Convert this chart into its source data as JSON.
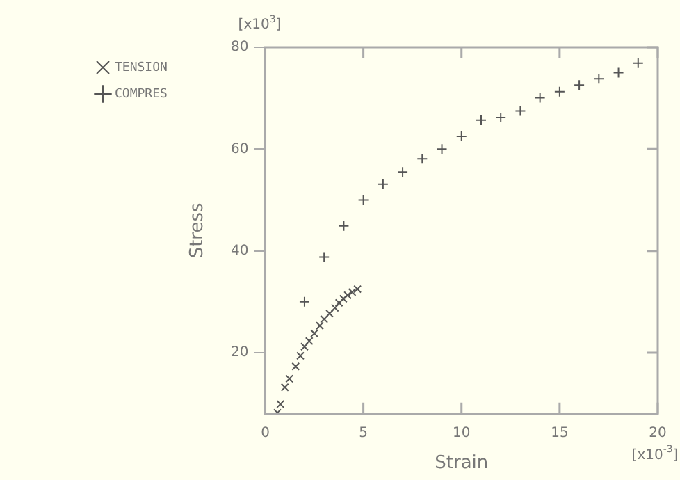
{
  "chart_data": {
    "type": "scatter",
    "xlabel": "Strain",
    "ylabel": "Stress",
    "annotations": [
      "[x10$^{3}$]",
      "[x10$^{-3}$]"
    ],
    "xlim": [
      0,
      20
    ],
    "xticks": [
      0,
      5,
      10,
      15,
      20
    ],
    "ylim": [
      8,
      80
    ],
    "yticks": [
      20,
      40,
      60,
      80
    ],
    "grid": false,
    "legend": "top left",
    "series": [
      {
        "name": "TENSION",
        "color": "#555555",
        "marker": "cross_x",
        "x": [
          0.62,
          0.77,
          1.0,
          1.23,
          1.55,
          1.79,
          2.0,
          2.24,
          2.5,
          2.78,
          3.0,
          3.28,
          3.55,
          3.76,
          3.98,
          4.2,
          4.43,
          4.7
        ],
        "values": [
          8.2,
          9.9,
          13.2,
          14.9,
          17.3,
          19.4,
          21.2,
          22.3,
          23.8,
          25.3,
          26.6,
          27.7,
          28.8,
          29.8,
          30.6,
          31.3,
          31.9,
          32.5
        ]
      },
      {
        "name": "COMPRES",
        "color": "#555555",
        "marker": "cross",
        "x": [
          2,
          3,
          4,
          5,
          6,
          7,
          8,
          9,
          10,
          11,
          12,
          13,
          14,
          15,
          16,
          17,
          18,
          19
        ],
        "values": [
          30,
          38.8,
          44.9,
          50,
          53.1,
          55.5,
          58.1,
          60,
          62.5,
          65.7,
          66.2,
          67.5,
          70.1,
          71.3,
          72.6,
          73.8,
          75,
          76.9
        ]
      }
    ]
  }
}
